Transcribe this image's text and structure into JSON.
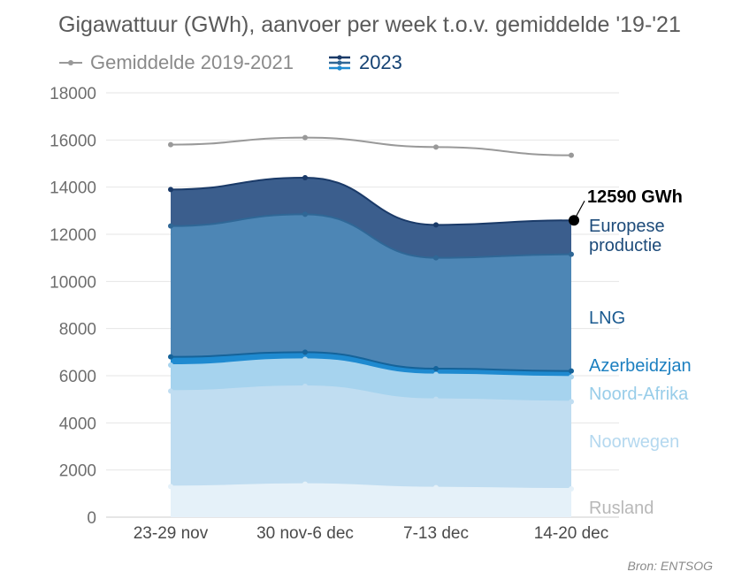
{
  "title": "Gigawattuur (GWh), aanvoer per week t.o.v. gemiddelde '19-'21",
  "legend": {
    "avg_label": "Gemiddelde 2019-2021",
    "y2023_label": "2023"
  },
  "source": "Bron: ENTSOG",
  "colors": {
    "avg_line": "#999999",
    "rusland": "#e5f1f9",
    "noorwegen": "#c0ddf1",
    "noord_afrika": "#a6d3ee",
    "azerbeidzjan": "#1f8ad0",
    "lng": "#4d86b5",
    "europese_productie": "#3b5e8d",
    "top_line": "#1a3a68"
  },
  "chart_data": {
    "type": "area",
    "stacked": true,
    "categories": [
      "23-29 nov",
      "30 nov-6 dec",
      "7-13 dec",
      "14-20 dec"
    ],
    "ylim": [
      0,
      18000
    ],
    "yticks": [
      0,
      2000,
      4000,
      6000,
      8000,
      10000,
      12000,
      14000,
      16000,
      18000
    ],
    "grid": true,
    "series": [
      {
        "name": "Rusland",
        "values": [
          1300,
          1400,
          1250,
          1200
        ],
        "label_color": "#b8b8b8",
        "fill": "#e5f1f9",
        "stroke": "#e5f1f9"
      },
      {
        "name": "Noorwegen",
        "values": [
          4050,
          4150,
          3750,
          3700
        ],
        "label_color": "#b4d8ef",
        "fill": "#c0ddf1",
        "stroke": "#c0ddf1"
      },
      {
        "name": "Noord-Afrika",
        "values": [
          1100,
          1150,
          1050,
          1050
        ],
        "label_color": "#98cde9",
        "fill": "#a6d3ee",
        "stroke": "#a6d3ee"
      },
      {
        "name": "Azerbeidzjan",
        "values": [
          350,
          300,
          250,
          250
        ],
        "label_color": "#1b7fc0",
        "fill": "#1f8ad0",
        "stroke": "#15639a"
      },
      {
        "name": "LNG",
        "values": [
          5550,
          5850,
          4700,
          4950
        ],
        "label_color": "#1a5a90",
        "fill": "#4d86b5",
        "stroke": "#2f6796"
      },
      {
        "name": "Europese productie",
        "label_lines": [
          "Europese",
          "productie"
        ],
        "values": [
          1550,
          1550,
          1400,
          1440
        ],
        "label_color": "#1d4b7a",
        "fill": "#3b5e8d",
        "stroke": "#1a3a68"
      }
    ],
    "average": {
      "name": "Gemiddelde 2019-2021",
      "values": [
        15800,
        16100,
        15700,
        15350
      ]
    },
    "annotation": {
      "text": "12590 GWh",
      "value": 12590
    }
  }
}
